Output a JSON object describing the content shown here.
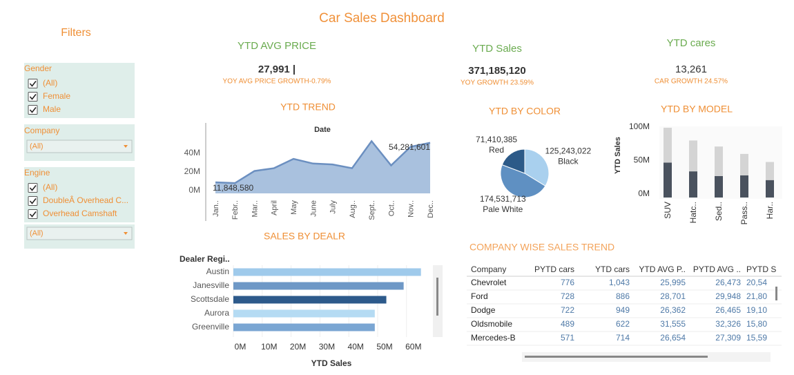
{
  "title": "Car Sales Dashboard",
  "filters": {
    "title": "Filters",
    "gender": {
      "label": "Gender",
      "options": [
        "(All)",
        "Female",
        "Male"
      ]
    },
    "company": {
      "label": "Company",
      "selected": "(All)"
    },
    "engine": {
      "label": "Engine",
      "options": [
        "(All)",
        "DoubleÂ Overhead C...",
        "Overhead Camshaft"
      ],
      "selected": "(All)"
    }
  },
  "kpis": [
    {
      "title": "YTD AVG PRICE",
      "value": "27,991 |",
      "growth": "YOY AVG PRICE GROWTH-0.79%"
    },
    {
      "title": "YTD Sales",
      "value": "371,185,120",
      "growth": "YOY GROWTH 23.59%"
    },
    {
      "title": "YTD cares",
      "value": "13,261",
      "growth": "CAR GROWTH 24.57%"
    }
  ],
  "chart_data": [
    {
      "type": "area",
      "title": "YTD TREND",
      "subtitle": "Date",
      "categories": [
        "Jan..",
        "Febr..",
        "Mar..",
        "April",
        "May",
        "June",
        "July",
        "Aug..",
        "Sept..",
        "Oct..",
        "Nov..",
        "Dec.."
      ],
      "values": [
        11848580,
        11000000,
        24000000,
        27000000,
        37000000,
        32000000,
        31000000,
        27000000,
        56000000,
        30000000,
        50000000,
        54281601
      ],
      "value_labels": [
        "11,848,580",
        null,
        null,
        null,
        null,
        null,
        null,
        null,
        null,
        null,
        null,
        "54,281,601"
      ],
      "color": "#a9c1de",
      "line_color": "#6b8fc0",
      "ylim": [
        0,
        70000000
      ],
      "yticks": [
        {
          "value": 0,
          "label": "0M"
        },
        {
          "value": 20000000,
          "label": "20M"
        },
        {
          "value": 40000000,
          "label": "40M"
        }
      ]
    },
    {
      "type": "pie",
      "title": "YTD BY COLOR",
      "categories": [
        "Black",
        "Pale White",
        "Red"
      ],
      "values": [
        125243022,
        174531713,
        71410385
      ],
      "value_labels": [
        "125,243,022",
        "174,531,713",
        "71,410,385"
      ],
      "colors": [
        "#a9d0ee",
        "#5f90c2",
        "#2c5a88"
      ]
    },
    {
      "type": "stacked_bar",
      "title": "YTD BY MODEL",
      "ylabel": "YTD Sales",
      "categories": [
        "SUV",
        "Hatc..",
        "Sed..",
        "Pass..",
        "Har.."
      ],
      "series": [
        {
          "color": "#4a525e",
          "values": [
            52000000,
            39000000,
            32000000,
            33000000,
            26000000
          ]
        },
        {
          "color": "#d4d4d4",
          "values": [
            52000000,
            46000000,
            44000000,
            32000000,
            27000000
          ]
        }
      ],
      "ylim": [
        0,
        105000000
      ],
      "yticks": [
        {
          "value": 0,
          "label": "0M"
        },
        {
          "value": 50000000,
          "label": "50M"
        },
        {
          "value": 100000000,
          "label": "100M"
        }
      ]
    },
    {
      "type": "hbar",
      "title": "SALES BY DEALR",
      "category_label": "Dealer Regi..",
      "xlabel": "YTD Sales",
      "categories": [
        "Austin",
        "Janesville",
        "Scottsdale",
        "Aurora",
        "Greenville"
      ],
      "values": [
        65000000,
        59000000,
        53000000,
        49000000,
        49000000
      ],
      "colors": [
        "#9fcaeb",
        "#6e98c6",
        "#2d5a8b",
        "#b5dbf3",
        "#7aa6d3"
      ],
      "xlim": [
        0,
        70000000
      ],
      "xticks": [
        {
          "value": 0,
          "label": "0M"
        },
        {
          "value": 10000000,
          "label": "10M"
        },
        {
          "value": 20000000,
          "label": "20M"
        },
        {
          "value": 30000000,
          "label": "30M"
        },
        {
          "value": 40000000,
          "label": "40M"
        },
        {
          "value": 50000000,
          "label": "50M"
        },
        {
          "value": 60000000,
          "label": "60M"
        }
      ]
    }
  ],
  "table": {
    "title": "COMPANY WISE SALES TREND",
    "columns": [
      "Company",
      "PYTD cars",
      "YTD cars",
      "YTD AVG P..",
      "PYTD AVG ..",
      "PYTD S"
    ],
    "rows": [
      [
        "Chevrolet",
        "776",
        "1,043",
        "25,995",
        "26,473",
        "20,54"
      ],
      [
        "Ford",
        "728",
        "886",
        "28,701",
        "29,948",
        "21,80"
      ],
      [
        "Dodge",
        "722",
        "949",
        "26,362",
        "26,465",
        "19,10"
      ],
      [
        "Oldsmobile",
        "489",
        "622",
        "31,555",
        "32,326",
        "15,80"
      ],
      [
        "Mercedes-B",
        "571",
        "714",
        "26,654",
        "27,309",
        "15,59"
      ]
    ]
  }
}
